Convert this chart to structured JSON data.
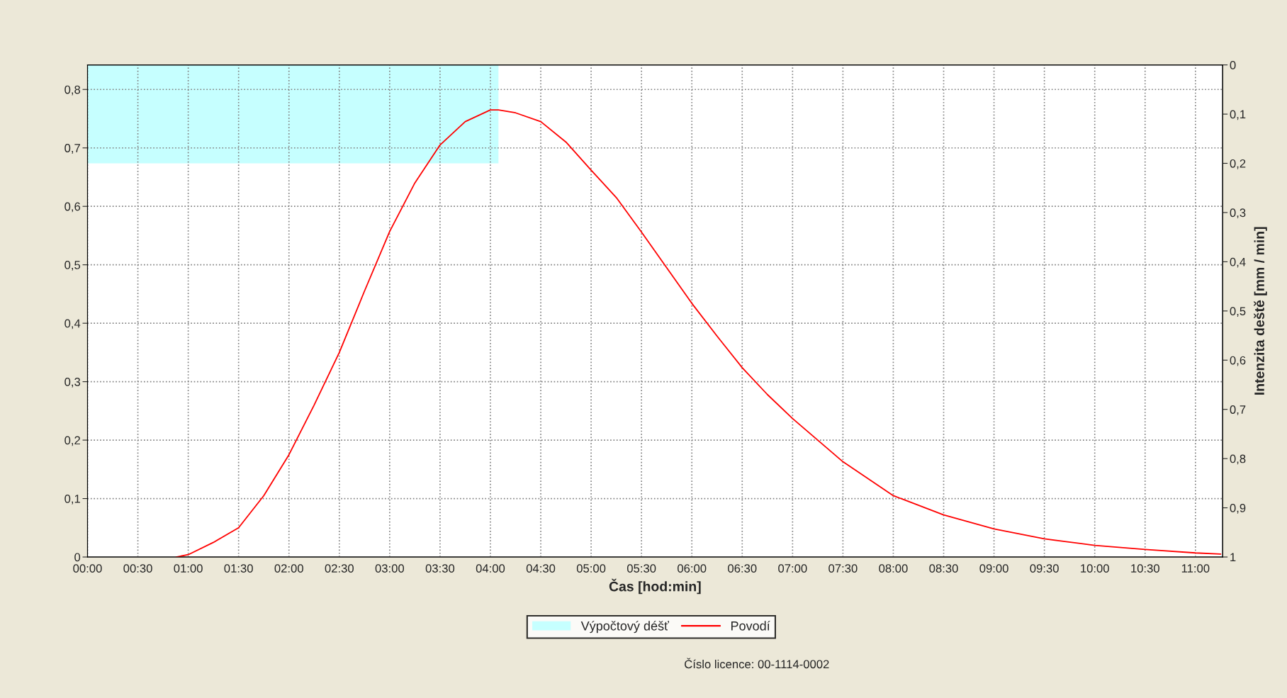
{
  "chart_data": {
    "type": "line",
    "xlabel": "Čas [hod:min]",
    "y2label": "Intenzita deště [mm / min]",
    "series": [
      {
        "name": "Výpočtový déšť",
        "type": "area",
        "axis": "y2",
        "color": "#c6ffff",
        "x": [
          0,
          4.08
        ],
        "values": [
          0.2,
          0.2
        ]
      },
      {
        "name": "Povodí",
        "color": "#ff0000",
        "x": [
          0.88,
          1.0,
          1.25,
          1.5,
          1.75,
          2.0,
          2.25,
          2.5,
          2.75,
          3.0,
          3.25,
          3.5,
          3.75,
          4.0,
          4.08,
          4.25,
          4.5,
          4.75,
          5.0,
          5.25,
          5.5,
          5.75,
          6.0,
          6.25,
          6.5,
          6.75,
          7.0,
          7.5,
          8.0,
          8.5,
          9.0,
          9.5,
          10.0,
          10.5,
          11.0,
          11.25
        ],
        "values": [
          0,
          0.004,
          0.025,
          0.05,
          0.105,
          0.175,
          0.26,
          0.35,
          0.455,
          0.557,
          0.64,
          0.705,
          0.745,
          0.765,
          0.765,
          0.76,
          0.745,
          0.71,
          0.662,
          0.615,
          0.556,
          0.495,
          0.434,
          0.378,
          0.324,
          0.278,
          0.237,
          0.163,
          0.105,
          0.072,
          0.048,
          0.031,
          0.02,
          0.013,
          0.007,
          0.005
        ]
      }
    ],
    "xlim": [
      0,
      11.27
    ],
    "xticks": [
      {
        "value": 0,
        "label": "00:00"
      },
      {
        "value": 0.5,
        "label": "00:30"
      },
      {
        "value": 1,
        "label": "01:00"
      },
      {
        "value": 1.5,
        "label": "01:30"
      },
      {
        "value": 2,
        "label": "02:00"
      },
      {
        "value": 2.5,
        "label": "02:30"
      },
      {
        "value": 3,
        "label": "03:00"
      },
      {
        "value": 3.5,
        "label": "03:30"
      },
      {
        "value": 4,
        "label": "04:00"
      },
      {
        "value": 4.5,
        "label": "04:30"
      },
      {
        "value": 5,
        "label": "05:00"
      },
      {
        "value": 5.5,
        "label": "05:30"
      },
      {
        "value": 6,
        "label": "06:00"
      },
      {
        "value": 6.5,
        "label": "06:30"
      },
      {
        "value": 7,
        "label": "07:00"
      },
      {
        "value": 7.5,
        "label": "07:30"
      },
      {
        "value": 8,
        "label": "08:00"
      },
      {
        "value": 8.5,
        "label": "08:30"
      },
      {
        "value": 9,
        "label": "09:00"
      },
      {
        "value": 9.5,
        "label": "09:30"
      },
      {
        "value": 10,
        "label": "10:00"
      },
      {
        "value": 10.5,
        "label": "10:30"
      },
      {
        "value": 11,
        "label": "11:00"
      }
    ],
    "ylim": [
      0,
      0.842
    ],
    "yticks": [
      0,
      {
        "value": 0.1,
        "label": "0,1"
      },
      {
        "value": 0.2,
        "label": "0,2"
      },
      {
        "value": 0.3,
        "label": "0,3"
      },
      {
        "value": 0.4,
        "label": "0,4"
      },
      {
        "value": 0.5,
        "label": "0,5"
      },
      {
        "value": 0.6,
        "label": "0,6"
      },
      {
        "value": 0.7,
        "label": "0,7"
      },
      {
        "value": 0.8,
        "label": "0,8"
      }
    ],
    "y2lim": [
      1,
      0
    ],
    "y2ticks": [
      0,
      {
        "value": 0.1,
        "label": "0,1"
      },
      {
        "value": 0.2,
        "label": "0,2"
      },
      {
        "value": 0.3,
        "label": "0,3"
      },
      {
        "value": 0.4,
        "label": "0,4"
      },
      {
        "value": 0.5,
        "label": "0,5"
      },
      {
        "value": 0.6,
        "label": "0,6"
      },
      {
        "value": 0.7,
        "label": "0,7"
      },
      {
        "value": 0.8,
        "label": "0,8"
      },
      {
        "value": 0.9,
        "label": "0,9"
      },
      1
    ],
    "grid": true,
    "legend": "bottom",
    "annotations": [
      "Číslo licence: 00-1114-0002"
    ]
  }
}
